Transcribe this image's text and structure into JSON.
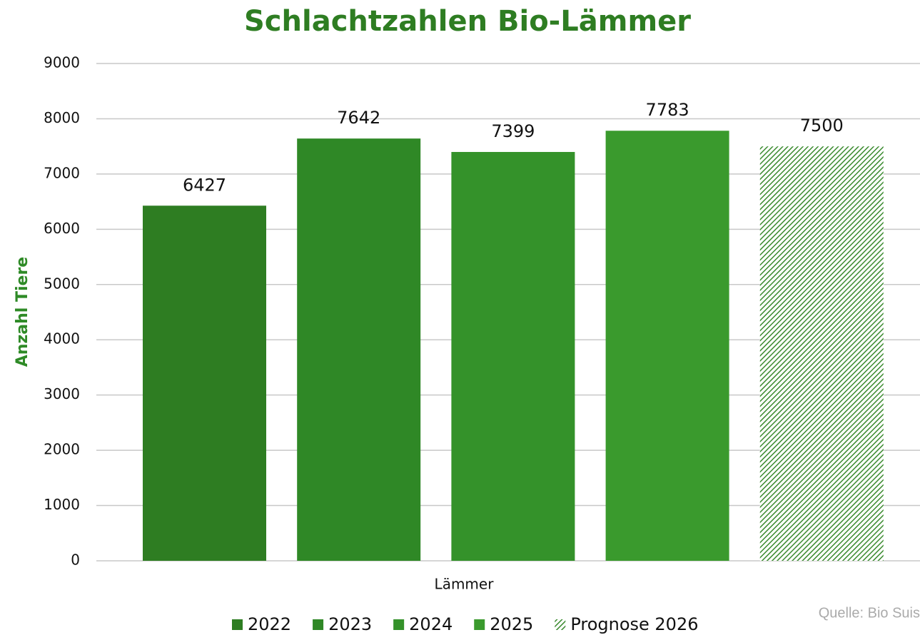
{
  "chart_data": {
    "type": "bar",
    "title": "Schlachtzahlen Bio-Lämmer",
    "y_label": "Anzahl Tiere",
    "source": "Quelle: Bio Suis",
    "categories": [
      "Lämmer"
    ],
    "series": [
      {
        "name": "2022",
        "color": "#2e7d22",
        "values": [
          6427
        ]
      },
      {
        "name": "2023",
        "color": "#2f8826",
        "values": [
          7642
        ]
      },
      {
        "name": "2024",
        "color": "#34922a",
        "values": [
          7399
        ]
      },
      {
        "name": "2025",
        "color": "#3a9a2d",
        "values": [
          7783
        ]
      },
      {
        "name": "Prognose 2026",
        "color": "#3a8a2e",
        "hatch": true,
        "values": [
          7500
        ]
      }
    ],
    "ylim": [
      0,
      9000
    ],
    "yticks": [
      0,
      1000,
      2000,
      3000,
      4000,
      5000,
      6000,
      7000,
      8000,
      9000
    ],
    "grid": true
  }
}
